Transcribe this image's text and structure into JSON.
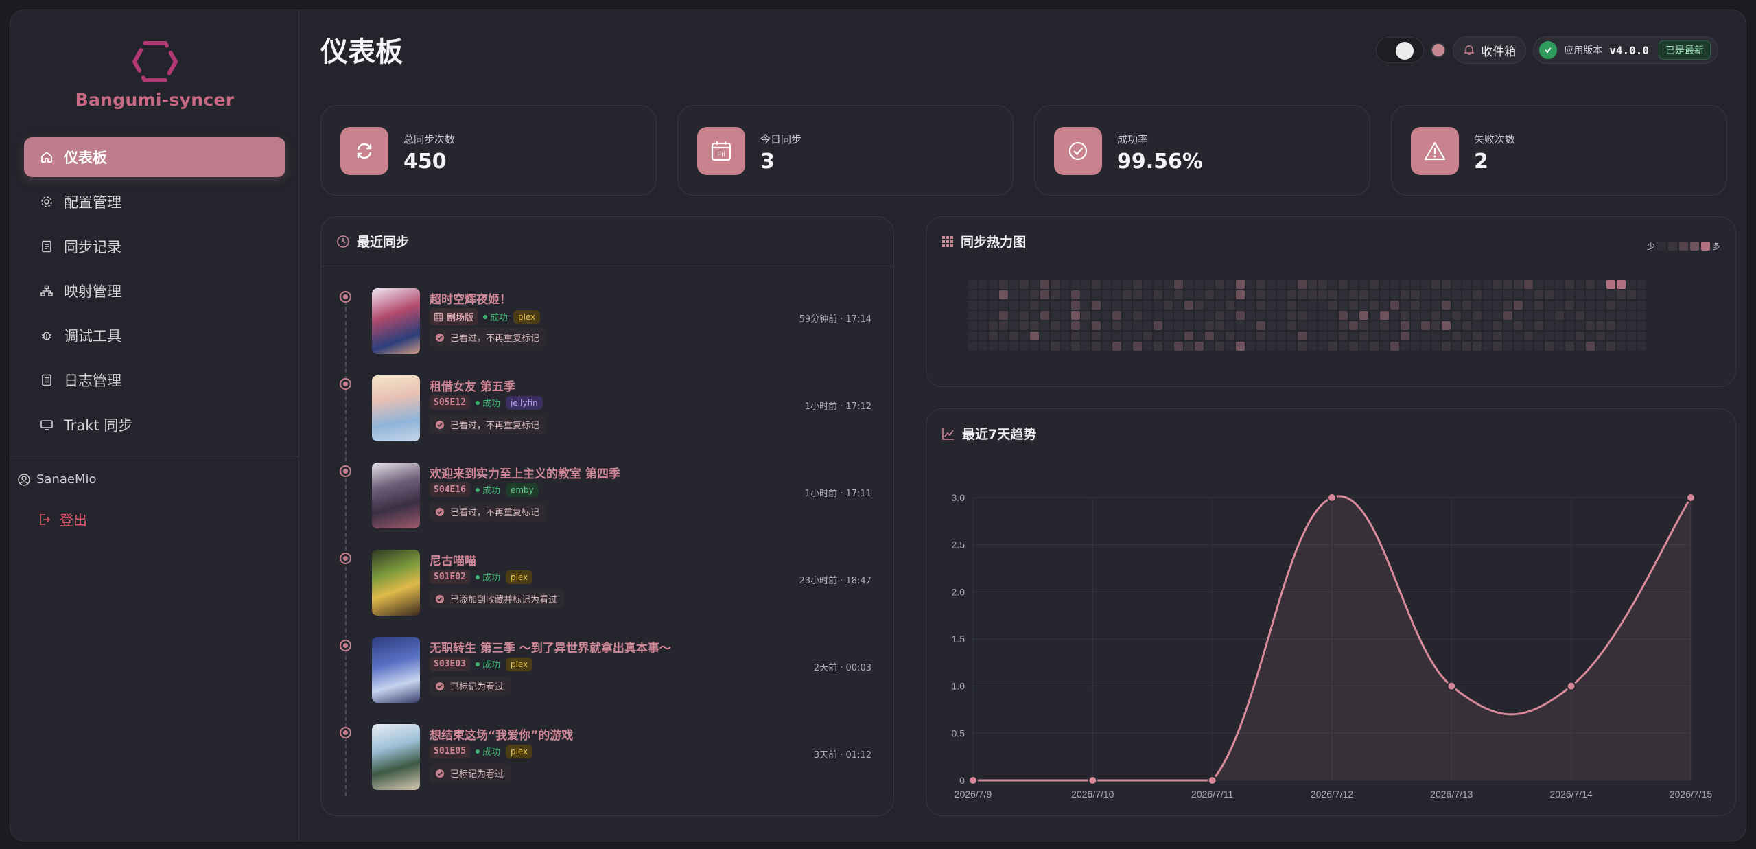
{
  "app": {
    "brand": "Bangumi-syncer",
    "page_title": "仪表板"
  },
  "sidebar": {
    "items": [
      {
        "label": "仪表板",
        "icon": "home-icon",
        "active": true
      },
      {
        "label": "配置管理",
        "icon": "gear-icon"
      },
      {
        "label": "同步记录",
        "icon": "list-icon"
      },
      {
        "label": "映射管理",
        "icon": "sitemap-icon"
      },
      {
        "label": "调试工具",
        "icon": "bug-icon"
      },
      {
        "label": "日志管理",
        "icon": "file-icon"
      },
      {
        "label": "Trakt 同步",
        "icon": "monitor-icon"
      }
    ],
    "user": "SanaeMio",
    "logout": "登出"
  },
  "topbar": {
    "inbox": "收件箱",
    "version_label": "应用版本",
    "version": "v4.0.0",
    "version_status": "已是最新"
  },
  "stats": [
    {
      "label": "总同步次数",
      "value": "450",
      "icon": "refresh-icon"
    },
    {
      "label": "今日同步",
      "value": "3",
      "icon": "calendar-icon",
      "icon_text": "Fri"
    },
    {
      "label": "成功率",
      "value": "99.56%",
      "icon": "check-circle-icon"
    },
    {
      "label": "失败次数",
      "value": "2",
      "icon": "warning-icon"
    }
  ],
  "recent": {
    "title": "最近同步",
    "entries": [
      {
        "title": "超时空辉夜姬！",
        "ep": "",
        "type_label": "剧场版",
        "status": "成功",
        "server": "plex",
        "note": "已看过，不再重复标记",
        "time": "59分钟前 · 17:14"
      },
      {
        "title": "租借女友 第五季",
        "ep": "S05E12",
        "status": "成功",
        "server": "jellyfin",
        "note": "已看过，不再重复标记",
        "time": "1小时前 · 17:12"
      },
      {
        "title": "欢迎来到实力至上主义的教室 第四季",
        "ep": "S04E16",
        "status": "成功",
        "server": "emby",
        "note": "已看过，不再重复标记",
        "time": "1小时前 · 17:11"
      },
      {
        "title": "尼古喵喵",
        "ep": "S01E02",
        "status": "成功",
        "server": "plex",
        "note": "已添加到收藏并标记为看过",
        "time": "23小时前 · 18:47"
      },
      {
        "title": "无职转生 第三季 ～到了异世界就拿出真本事～",
        "ep": "S03E03",
        "status": "成功",
        "server": "plex",
        "note": "已标记为看过",
        "time": "2天前 · 00:03"
      },
      {
        "title": "想结束这场“我爱你”的游戏",
        "ep": "S01E05",
        "status": "成功",
        "server": "plex",
        "note": "已标记为看过",
        "time": "3天前 · 01:12"
      }
    ]
  },
  "heatmap": {
    "title": "同步热力图",
    "legend_less": "少",
    "legend_more": "多",
    "colors": [
      "#2d2e36",
      "#3b353c",
      "#54434b",
      "#6f535d",
      "#8c5f6d",
      "#b0707f"
    ],
    "rows": [
      "000101021000100010002000103010002110100100000110000111200010105500",
      "000300121020000110101001003010011111011000110000010000011000000110",
      "000000100020200000010210010010010001010102010020100012010010001000",
      "000201020031002010000000102000011000203030100101010020000101000000",
      "001101101020201000200001100020010000121010202130100101010000111000",
      "001010300010100001000202010010002000101000200001010100100001010000",
      "000000001010102020102120103000001001010102000010110100001010201000"
    ]
  },
  "trend": {
    "title": "最近7天趋势"
  },
  "chart_data": {
    "type": "line",
    "title": "最近7天趋势",
    "x": [
      "2026/7/9",
      "2026/7/10",
      "2026/7/11",
      "2026/7/12",
      "2026/7/13",
      "2026/7/14",
      "2026/7/15"
    ],
    "series": [
      {
        "values": [
          0,
          0,
          0,
          3,
          1,
          1,
          3
        ]
      }
    ],
    "ylim": [
      0,
      3
    ],
    "yticks": [
      "0",
      "0.5",
      "1.0",
      "1.5",
      "2.0",
      "2.5",
      "3.0"
    ],
    "grid": true,
    "line_color": "#d98a9a"
  }
}
